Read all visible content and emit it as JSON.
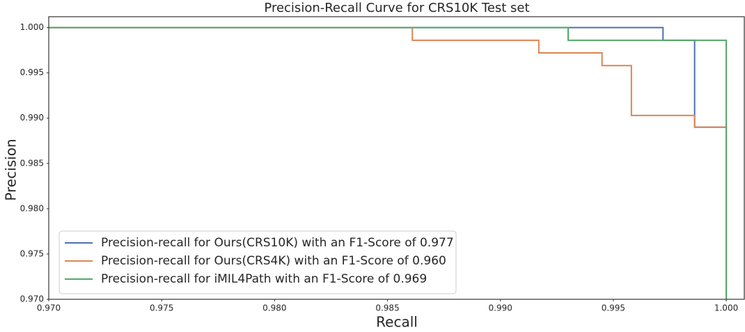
{
  "chart_data": {
    "type": "line",
    "title": "Precision-Recall Curve for CRS10K Test set",
    "xlabel": "Recall",
    "ylabel": "Precision",
    "xlim": [
      0.97,
      1.0008
    ],
    "ylim": [
      0.97,
      1.0012
    ],
    "xticks": [
      {
        "value": 0.97,
        "label": "0.970"
      },
      {
        "value": 0.975,
        "label": "0.975"
      },
      {
        "value": 0.98,
        "label": "0.980"
      },
      {
        "value": 0.985,
        "label": "0.985"
      },
      {
        "value": 0.99,
        "label": "0.990"
      },
      {
        "value": 0.995,
        "label": "0.995"
      },
      {
        "value": 1.0,
        "label": "1.000"
      }
    ],
    "yticks": [
      {
        "value": 0.97,
        "label": "0.970"
      },
      {
        "value": 0.975,
        "label": "0.975"
      },
      {
        "value": 0.98,
        "label": "0.980"
      },
      {
        "value": 0.985,
        "label": "0.985"
      },
      {
        "value": 0.99,
        "label": "0.990"
      },
      {
        "value": 0.995,
        "label": "0.995"
      },
      {
        "value": 1.0,
        "label": "1.000"
      }
    ],
    "legend": "lower left",
    "series": [
      {
        "name": "Precision-recall for Ours(CRS10K) with an F1-Score of 0.977",
        "color": "#4c72b0",
        "x": [
          0.97,
          0.9972,
          0.9972,
          0.9986,
          0.9986,
          1.0,
          1.0
        ],
        "values": [
          1.0,
          1.0,
          0.9986,
          0.9986,
          0.989,
          0.989,
          0.97
        ]
      },
      {
        "name": "Precision-recall for Ours(CRS4K) with an F1-Score of 0.960",
        "color": "#dd8452",
        "x": [
          0.97,
          0.9861,
          0.9861,
          0.9917,
          0.9917,
          0.9945,
          0.9945,
          0.9958,
          0.9958,
          0.9986,
          0.9986,
          1.0,
          1.0
        ],
        "values": [
          1.0,
          1.0,
          0.9986,
          0.9986,
          0.9972,
          0.9972,
          0.9958,
          0.9958,
          0.9903,
          0.9903,
          0.989,
          0.989,
          0.97
        ]
      },
      {
        "name": "Precision-recall for iMIL4Path with an F1-Score of 0.969",
        "color": "#55a868",
        "x": [
          0.97,
          0.993,
          0.993,
          1.0,
          1.0
        ],
        "values": [
          1.0,
          1.0,
          0.9986,
          0.9986,
          0.97
        ]
      }
    ]
  }
}
